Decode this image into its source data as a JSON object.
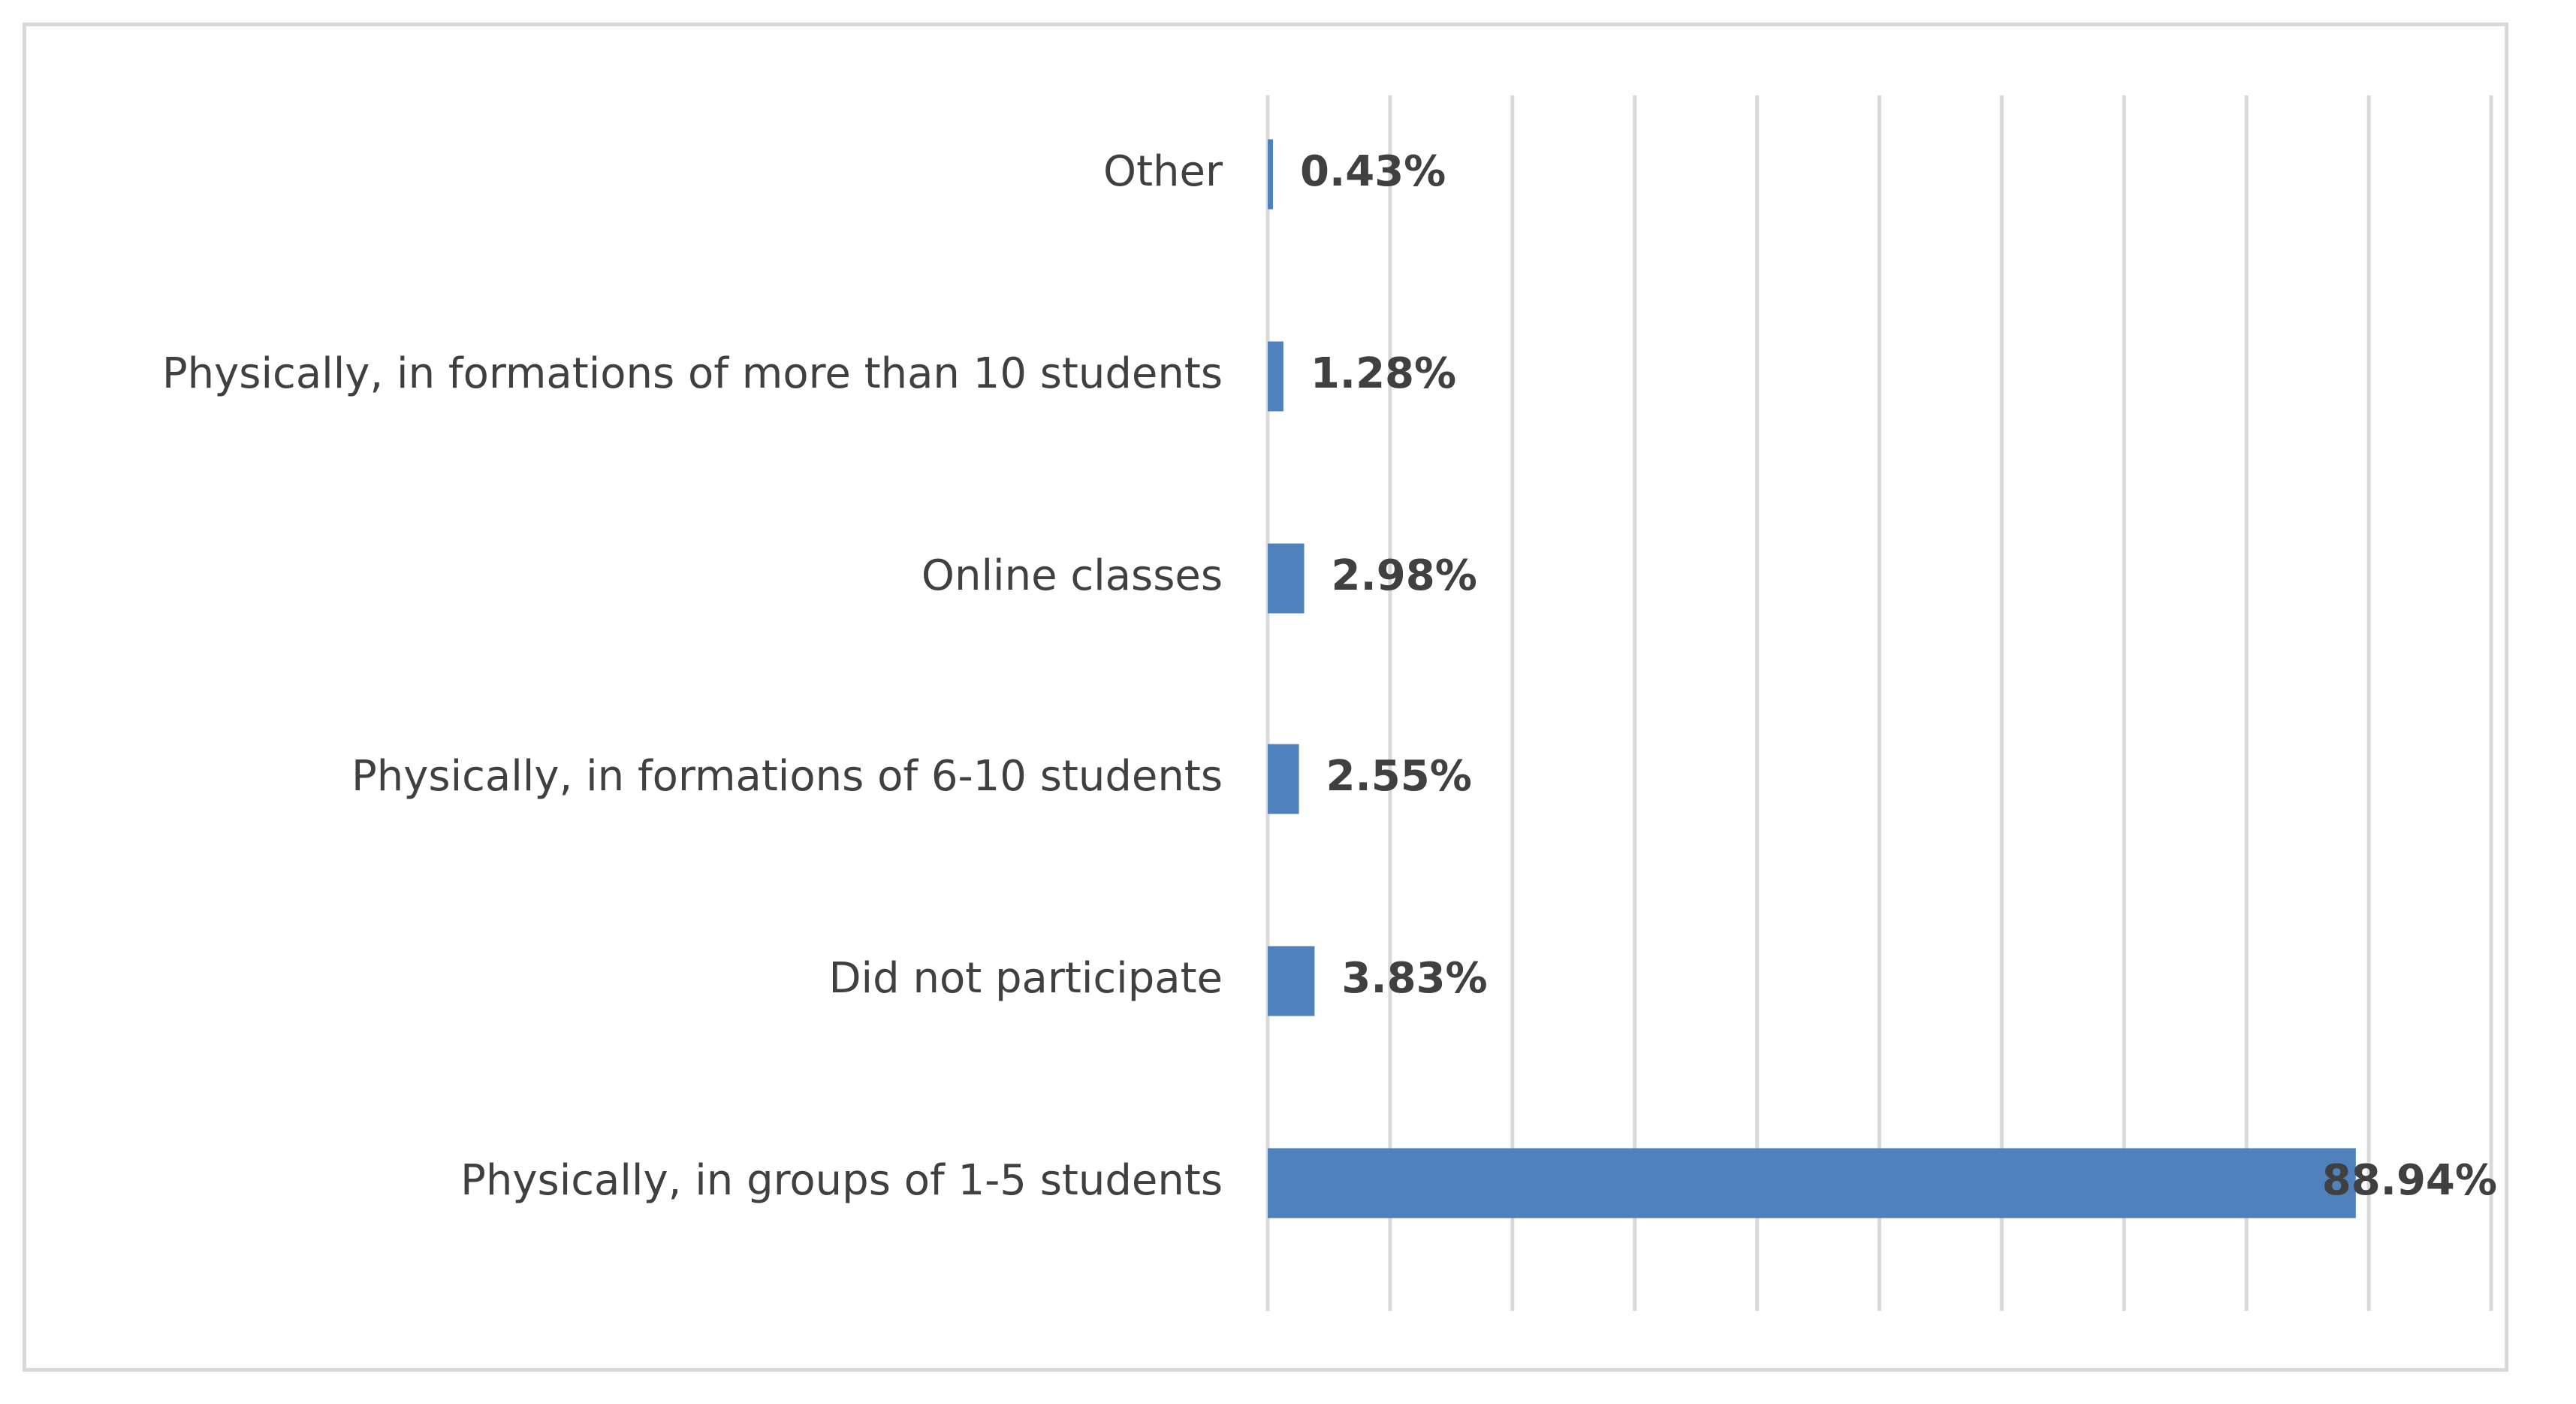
{
  "chart_data": {
    "type": "bar",
    "orientation": "horizontal",
    "categories": [
      "Other",
      "Physically, in formations of more than 10 students",
      "Online classes",
      "Physically, in formations of 6-10 students",
      "Did not participate",
      "Physically, in groups of 1-5 students"
    ],
    "values": [
      0.43,
      1.28,
      2.98,
      2.55,
      3.83,
      88.94
    ],
    "value_labels": [
      "0.43%",
      "1.28%",
      "2.98%",
      "2.55%",
      "3.83%",
      "88.94%"
    ],
    "xlim": [
      0,
      100
    ],
    "x_gridline_step": 10,
    "grid": true,
    "legend": "none",
    "bar_color": "#4f81bd",
    "gridline_color": "#d9d9d9",
    "text_color": "#404040"
  }
}
